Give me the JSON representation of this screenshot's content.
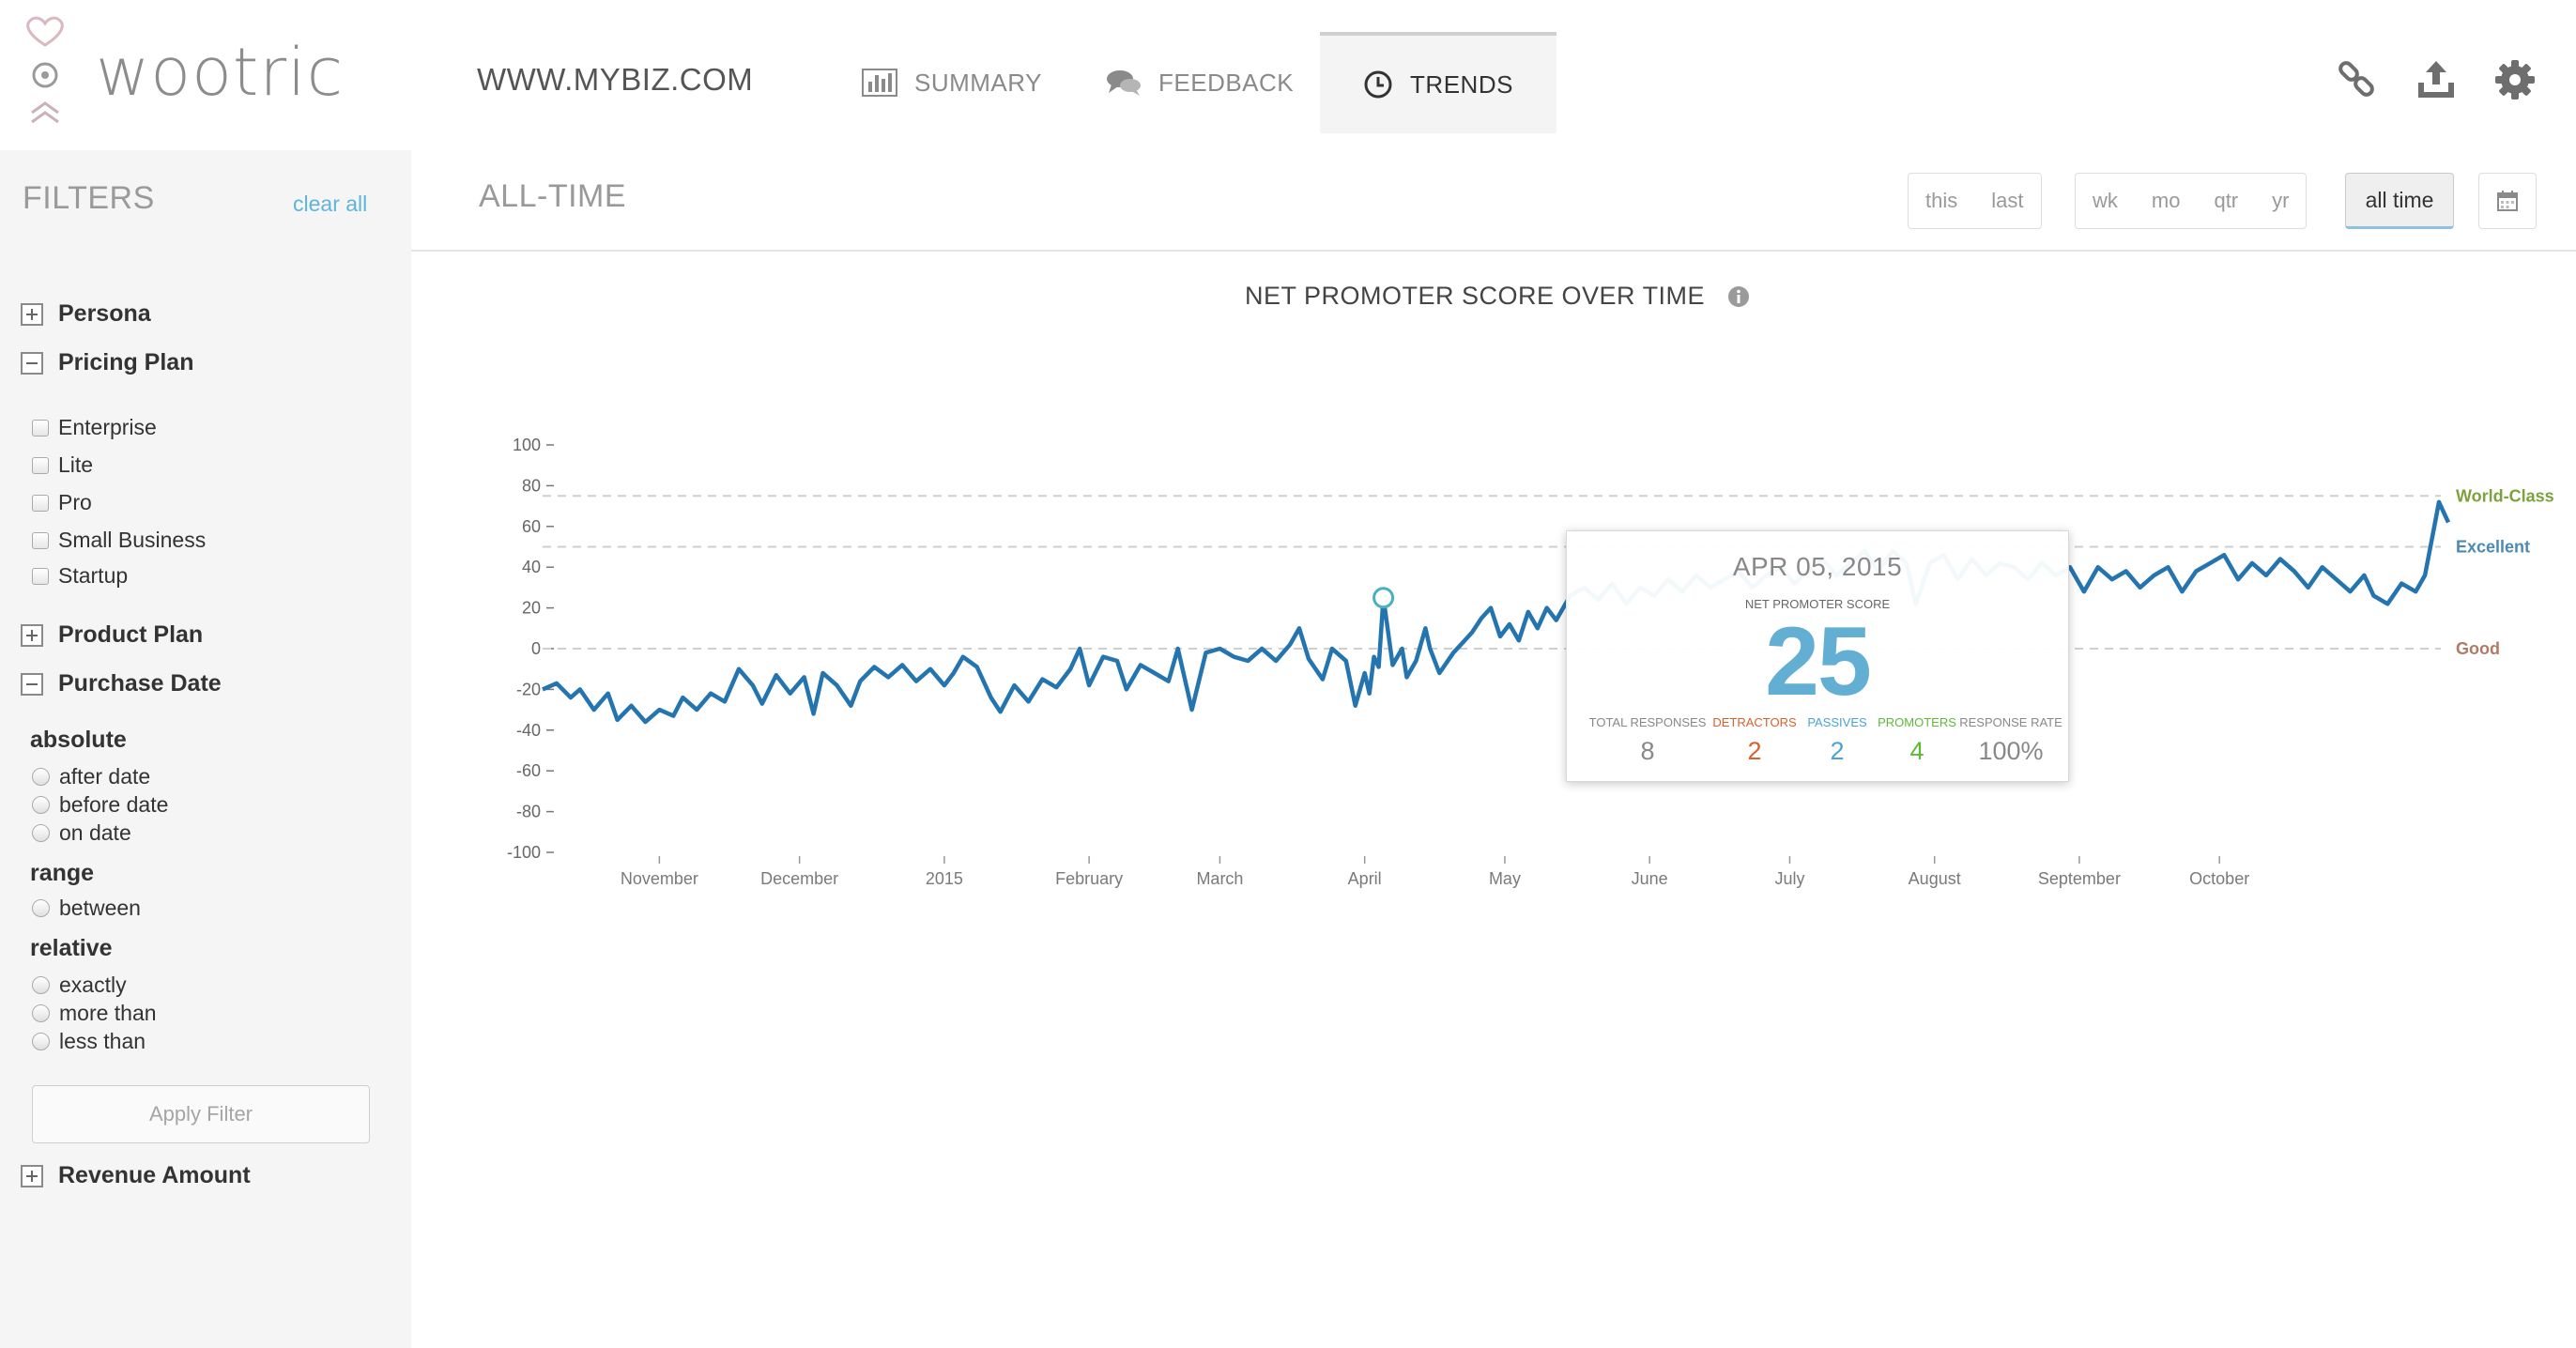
{
  "brand": {
    "logo_text": "wootric"
  },
  "header": {
    "site_name": "WWW.MYBIZ.COM",
    "tabs": [
      {
        "label": "SUMMARY",
        "icon": "bar-chart-icon"
      },
      {
        "label": "FEEDBACK",
        "icon": "speech-bubbles-icon"
      },
      {
        "label": "TRENDS",
        "icon": "clock-icon",
        "active": true
      }
    ],
    "icons": [
      "link-icon",
      "upload-icon",
      "gear-icon"
    ]
  },
  "sidebar": {
    "title": "FILTERS",
    "clear_all": "clear all",
    "groups": {
      "persona": "Persona",
      "pricing_plan": "Pricing Plan",
      "product_plan": "Product Plan",
      "purchase_date": "Purchase Date",
      "revenue_amount": "Revenue Amount"
    },
    "pricing_options": [
      "Enterprise",
      "Lite",
      "Pro",
      "Small Business",
      "Startup"
    ],
    "date_absolute": {
      "label": "absolute",
      "options": [
        "after date",
        "before date",
        "on date"
      ]
    },
    "date_range": {
      "label": "range",
      "options": [
        "between"
      ]
    },
    "date_relative": {
      "label": "relative",
      "options": [
        "exactly",
        "more than",
        "less than"
      ]
    },
    "apply_label": "Apply Filter"
  },
  "toolbar": {
    "range_title": "ALL-TIME",
    "this_label": "this",
    "last_label": "last",
    "periods": [
      "wk",
      "mo",
      "qtr",
      "yr"
    ],
    "all_time_label": "all time",
    "calendar_icon": "calendar-icon"
  },
  "chart_title": "NET PROMOTER SCORE OVER TIME",
  "chart_data": {
    "type": "line",
    "title": "NET PROMOTER SCORE OVER TIME",
    "ylim": [
      -100,
      100
    ],
    "yticks": [
      100,
      80,
      60,
      40,
      20,
      0,
      -20,
      -40,
      -60,
      -80,
      -100
    ],
    "x_labels": [
      "November",
      "December",
      "2015",
      "February",
      "March",
      "April",
      "May",
      "June",
      "July",
      "August",
      "September",
      "October"
    ],
    "benchmarks": [
      {
        "name": "World-Class",
        "value": 75,
        "color": "#7da23d"
      },
      {
        "name": "Excellent",
        "value": 50,
        "color": "#4d89b5"
      },
      {
        "name": "Good",
        "value": 0,
        "color": "#b07a66"
      }
    ],
    "series": [
      {
        "color": "#2474b0",
        "points": [
          [
            "2014-10-07",
            -20
          ],
          [
            "2014-10-10",
            -17
          ],
          [
            "2014-10-13",
            -24
          ],
          [
            "2014-10-15",
            -20
          ],
          [
            "2014-10-18",
            -30
          ],
          [
            "2014-10-21",
            -22
          ],
          [
            "2014-10-23",
            -35
          ],
          [
            "2014-10-26",
            -28
          ],
          [
            "2014-10-29",
            -36
          ],
          [
            "2014-11-01",
            -30
          ],
          [
            "2014-11-04",
            -33
          ],
          [
            "2014-11-06",
            -24
          ],
          [
            "2014-11-09",
            -30
          ],
          [
            "2014-11-12",
            -22
          ],
          [
            "2014-11-15",
            -26
          ],
          [
            "2014-11-18",
            -10
          ],
          [
            "2014-11-21",
            -18
          ],
          [
            "2014-11-23",
            -27
          ],
          [
            "2014-11-26",
            -13
          ],
          [
            "2014-11-29",
            -22
          ],
          [
            "2014-12-02",
            -14
          ],
          [
            "2014-12-04",
            -32
          ],
          [
            "2014-12-06",
            -12
          ],
          [
            "2014-12-09",
            -18
          ],
          [
            "2014-12-12",
            -28
          ],
          [
            "2014-12-14",
            -16
          ],
          [
            "2014-12-17",
            -9
          ],
          [
            "2014-12-20",
            -14
          ],
          [
            "2014-12-23",
            -8
          ],
          [
            "2014-12-26",
            -16
          ],
          [
            "2014-12-29",
            -10
          ],
          [
            "2015-01-01",
            -18
          ],
          [
            "2015-01-03",
            -12
          ],
          [
            "2015-01-05",
            -4
          ],
          [
            "2015-01-08",
            -9
          ],
          [
            "2015-01-11",
            -24
          ],
          [
            "2015-01-13",
            -31
          ],
          [
            "2015-01-16",
            -18
          ],
          [
            "2015-01-19",
            -26
          ],
          [
            "2015-01-22",
            -15
          ],
          [
            "2015-01-25",
            -19
          ],
          [
            "2015-01-28",
            -10
          ],
          [
            "2015-01-30",
            0
          ],
          [
            "2015-02-01",
            -18
          ],
          [
            "2015-02-04",
            -4
          ],
          [
            "2015-02-07",
            -6
          ],
          [
            "2015-02-09",
            -20
          ],
          [
            "2015-02-12",
            -8
          ],
          [
            "2015-02-15",
            -12
          ],
          [
            "2015-02-18",
            -16
          ],
          [
            "2015-02-20",
            0
          ],
          [
            "2015-02-23",
            -30
          ],
          [
            "2015-02-26",
            -2
          ],
          [
            "2015-03-01",
            0
          ],
          [
            "2015-03-04",
            -4
          ],
          [
            "2015-03-07",
            -6
          ],
          [
            "2015-03-10",
            0
          ],
          [
            "2015-03-13",
            -6
          ],
          [
            "2015-03-16",
            2
          ],
          [
            "2015-03-18",
            10
          ],
          [
            "2015-03-20",
            -5
          ],
          [
            "2015-03-23",
            -15
          ],
          [
            "2015-03-25",
            0
          ],
          [
            "2015-03-28",
            -6
          ],
          [
            "2015-03-30",
            -28
          ],
          [
            "2015-04-01",
            -12
          ],
          [
            "2015-04-02",
            -22
          ],
          [
            "2015-04-03",
            -4
          ],
          [
            "2015-04-04",
            -9
          ],
          [
            "2015-04-05",
            25
          ],
          [
            "2015-04-07",
            -8
          ],
          [
            "2015-04-09",
            0
          ],
          [
            "2015-04-10",
            -14
          ],
          [
            "2015-04-12",
            -6
          ],
          [
            "2015-04-14",
            10
          ],
          [
            "2015-04-15",
            0
          ],
          [
            "2015-04-17",
            -12
          ],
          [
            "2015-04-20",
            -2
          ],
          [
            "2015-04-22",
            3
          ],
          [
            "2015-04-24",
            8
          ],
          [
            "2015-04-26",
            15
          ],
          [
            "2015-04-28",
            20
          ],
          [
            "2015-04-30",
            6
          ],
          [
            "2015-05-02",
            12
          ],
          [
            "2015-05-04",
            4
          ],
          [
            "2015-05-06",
            18
          ],
          [
            "2015-05-08",
            10
          ],
          [
            "2015-05-10",
            20
          ],
          [
            "2015-05-12",
            14
          ],
          [
            "2015-05-15",
            26
          ],
          [
            "2015-05-18",
            30
          ],
          [
            "2015-05-21",
            24
          ],
          [
            "2015-05-24",
            32
          ],
          [
            "2015-05-27",
            22
          ],
          [
            "2015-05-30",
            30
          ],
          [
            "2015-06-02",
            26
          ],
          [
            "2015-06-05",
            34
          ],
          [
            "2015-06-08",
            28
          ],
          [
            "2015-06-11",
            36
          ],
          [
            "2015-06-14",
            30
          ],
          [
            "2015-06-17",
            34
          ],
          [
            "2015-06-20",
            38
          ],
          [
            "2015-06-23",
            30
          ],
          [
            "2015-06-26",
            36
          ],
          [
            "2015-06-29",
            40
          ],
          [
            "2015-07-02",
            32
          ],
          [
            "2015-07-05",
            38
          ],
          [
            "2015-07-08",
            44
          ],
          [
            "2015-07-11",
            36
          ],
          [
            "2015-07-14",
            42
          ],
          [
            "2015-07-17",
            48
          ],
          [
            "2015-07-20",
            38
          ],
          [
            "2015-07-23",
            48
          ],
          [
            "2015-07-26",
            42
          ],
          [
            "2015-07-28",
            22
          ],
          [
            "2015-07-31",
            42
          ],
          [
            "2015-08-03",
            46
          ],
          [
            "2015-08-06",
            34
          ],
          [
            "2015-08-09",
            44
          ],
          [
            "2015-08-12",
            36
          ],
          [
            "2015-08-15",
            42
          ],
          [
            "2015-08-18",
            40
          ],
          [
            "2015-08-21",
            34
          ],
          [
            "2015-08-24",
            42
          ],
          [
            "2015-08-27",
            36
          ],
          [
            "2015-08-30",
            40
          ],
          [
            "2015-09-02",
            28
          ],
          [
            "2015-09-05",
            40
          ],
          [
            "2015-09-08",
            34
          ],
          [
            "2015-09-11",
            38
          ],
          [
            "2015-09-14",
            30
          ],
          [
            "2015-09-17",
            36
          ],
          [
            "2015-09-20",
            40
          ],
          [
            "2015-09-23",
            28
          ],
          [
            "2015-09-26",
            38
          ],
          [
            "2015-09-29",
            42
          ],
          [
            "2015-10-02",
            46
          ],
          [
            "2015-10-05",
            34
          ],
          [
            "2015-10-08",
            42
          ],
          [
            "2015-10-11",
            36
          ],
          [
            "2015-10-14",
            44
          ],
          [
            "2015-10-17",
            38
          ],
          [
            "2015-10-20",
            30
          ],
          [
            "2015-10-23",
            40
          ],
          [
            "2015-10-26",
            34
          ],
          [
            "2015-10-29",
            28
          ],
          [
            "2015-11-01",
            36
          ],
          [
            "2015-11-03",
            26
          ],
          [
            "2015-11-06",
            22
          ],
          [
            "2015-11-09",
            32
          ],
          [
            "2015-11-12",
            28
          ],
          [
            "2015-11-14",
            36
          ],
          [
            "2015-11-16",
            60
          ],
          [
            "2015-11-17",
            72
          ],
          [
            "2015-11-19",
            62
          ]
        ]
      }
    ]
  },
  "tooltip": {
    "date": "APR 05, 2015",
    "nps_label": "NET PROMOTER SCORE",
    "score": "25",
    "columns": [
      {
        "label": "TOTAL RESPONSES",
        "value": "8",
        "color": "#888888"
      },
      {
        "label": "DETRACTORS",
        "value": "2",
        "color": "#d8602e"
      },
      {
        "label": "PASSIVES",
        "value": "2",
        "color": "#4aa3d4"
      },
      {
        "label": "PROMOTERS",
        "value": "4",
        "color": "#5fb83c"
      },
      {
        "label": "RESPONSE RATE",
        "value": "100%",
        "color": "#888888"
      }
    ]
  }
}
